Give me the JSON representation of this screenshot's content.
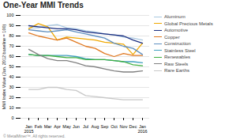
{
  "chart_data": {
    "type": "line",
    "title": "One-Year MMI Trends",
    "ylabel": "MMI Index Value (Jan. 2012 baseline = 100)",
    "annotations": [
      "© MetalMiner™. All rights reserved."
    ],
    "categories": [
      "Jan\n2015",
      "Feb",
      "Mar",
      "Apr",
      "May",
      "Jun",
      "Jul",
      "Aug",
      "Sep",
      "Oct",
      "Nov",
      "Dec",
      "Jan\n2016"
    ],
    "series": [
      {
        "name": "Aluminum",
        "color": "#aac8e0",
        "values": [
          88,
          88,
          90,
          91,
          88,
          87,
          85,
          84,
          82,
          81,
          79,
          78,
          76
        ]
      },
      {
        "name": "Global Precious Metals",
        "color": "#f0a800",
        "values": [
          87,
          92,
          89,
          76,
          79,
          78,
          77,
          76,
          74,
          73,
          72,
          62,
          73
        ]
      },
      {
        "name": "Automotive",
        "color": "#1a2e80",
        "values": [
          90,
          89,
          88,
          87,
          87,
          86,
          84,
          83,
          82,
          81,
          80,
          76,
          73
        ]
      },
      {
        "name": "Copper",
        "color": "#e07820",
        "values": [
          83,
          80,
          78,
          76,
          78,
          74,
          70,
          68,
          63,
          60,
          63,
          61,
          61
        ]
      },
      {
        "name": "Construction",
        "color": "#6090c0",
        "values": [
          86,
          85,
          84,
          85,
          86,
          84,
          82,
          80,
          78,
          73,
          70,
          68,
          62
        ]
      },
      {
        "name": "Stainless Steel",
        "color": "#40a0c0",
        "values": [
          62,
          61,
          61,
          61,
          61,
          60,
          58,
          57,
          57,
          56,
          55,
          55,
          54
        ]
      },
      {
        "name": "Renewables",
        "color": "#40b040",
        "values": [
          62,
          61,
          61,
          60,
          59,
          59,
          57,
          57,
          57,
          56,
          55,
          52,
          51
        ]
      },
      {
        "name": "Raw Steels",
        "color": "#808080",
        "values": [
          67,
          62,
          58,
          56,
          56,
          54,
          51,
          50,
          48,
          46,
          45,
          45,
          46
        ]
      },
      {
        "name": "Rare Earths",
        "color": "#c8c8c8",
        "values": [
          28,
          28,
          30,
          30,
          28,
          27,
          22,
          21,
          20,
          19,
          18,
          18,
          18
        ]
      }
    ],
    "ylim": [
      0,
      100
    ],
    "yticks": [
      0,
      10,
      20,
      30,
      40,
      50,
      60,
      70,
      80,
      90,
      100
    ],
    "grid": true,
    "legend": "right"
  }
}
